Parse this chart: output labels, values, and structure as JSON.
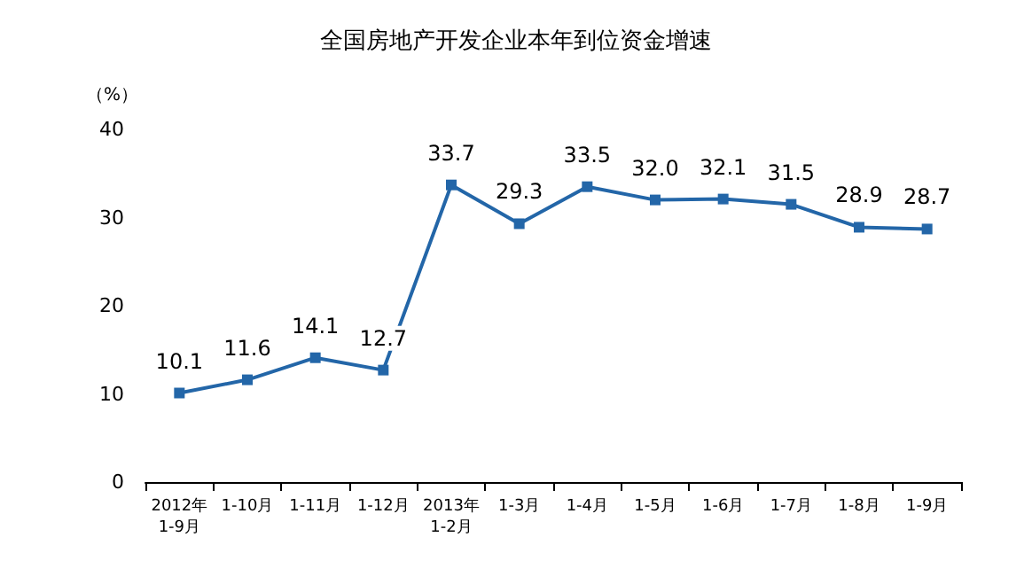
{
  "chart_data": {
    "type": "line",
    "title": "全国房地产开发企业本年到位资金增速",
    "ylabel": "（%）",
    "categories": [
      "2012年\n1-9月",
      "1-10月",
      "1-11月",
      "1-12月",
      "2013年\n1-2月",
      "1-3月",
      "1-4月",
      "1-5月",
      "1-6月",
      "1-7月",
      "1-8月",
      "1-9月"
    ],
    "series": [
      {
        "color": "#2366a8",
        "values": [
          10.1,
          11.6,
          14.1,
          12.7,
          33.7,
          29.3,
          33.5,
          32.0,
          32.1,
          31.5,
          28.9,
          28.7
        ]
      }
    ],
    "value_labels": [
      "10.1",
      "11.6",
      "14.1",
      "12.7",
      "33.7",
      "29.3",
      "33.5",
      "32.0",
      "32.1",
      "31.5",
      "28.9",
      "28.7"
    ],
    "ylim": [
      0,
      40
    ],
    "yticks": [
      0,
      10,
      20,
      30,
      40
    ],
    "grid": false,
    "marker": "square",
    "line_style": "solid"
  }
}
